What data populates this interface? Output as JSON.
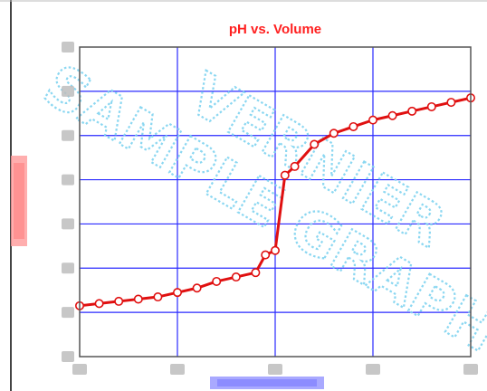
{
  "chart_data": {
    "type": "line",
    "title": "pH vs. Volume",
    "xlabel": "",
    "ylabel": "",
    "xlim": [
      0,
      20
    ],
    "ylim": [
      0,
      14
    ],
    "x_gridlines": 4,
    "y_gridlines": 7,
    "grid": true,
    "series": [
      {
        "color": "#e01010",
        "marker": "open-circle",
        "x": [
          0,
          1,
          2,
          3,
          4,
          5,
          6,
          7,
          8,
          9,
          9.5,
          10,
          10.5,
          11,
          12,
          13,
          14,
          15,
          16,
          17,
          18,
          19,
          20
        ],
        "y": [
          2.3,
          2.4,
          2.5,
          2.6,
          2.7,
          2.9,
          3.1,
          3.4,
          3.6,
          3.8,
          4.6,
          4.8,
          8.2,
          8.6,
          9.6,
          10.1,
          10.4,
          10.7,
          10.9,
          11.1,
          11.3,
          11.5,
          11.7
        ]
      }
    ]
  },
  "watermark": {
    "line1": "VERNIER",
    "line2": "SAMPLE GRAPH",
    "color": "#7fd3f0"
  },
  "colors": {
    "title": "#ff2020",
    "grid": "#2a2aff",
    "axis_frame": "#555555",
    "ylabel_blur": "#ff8c8c",
    "xlabel_blur": "#8a8aff"
  }
}
